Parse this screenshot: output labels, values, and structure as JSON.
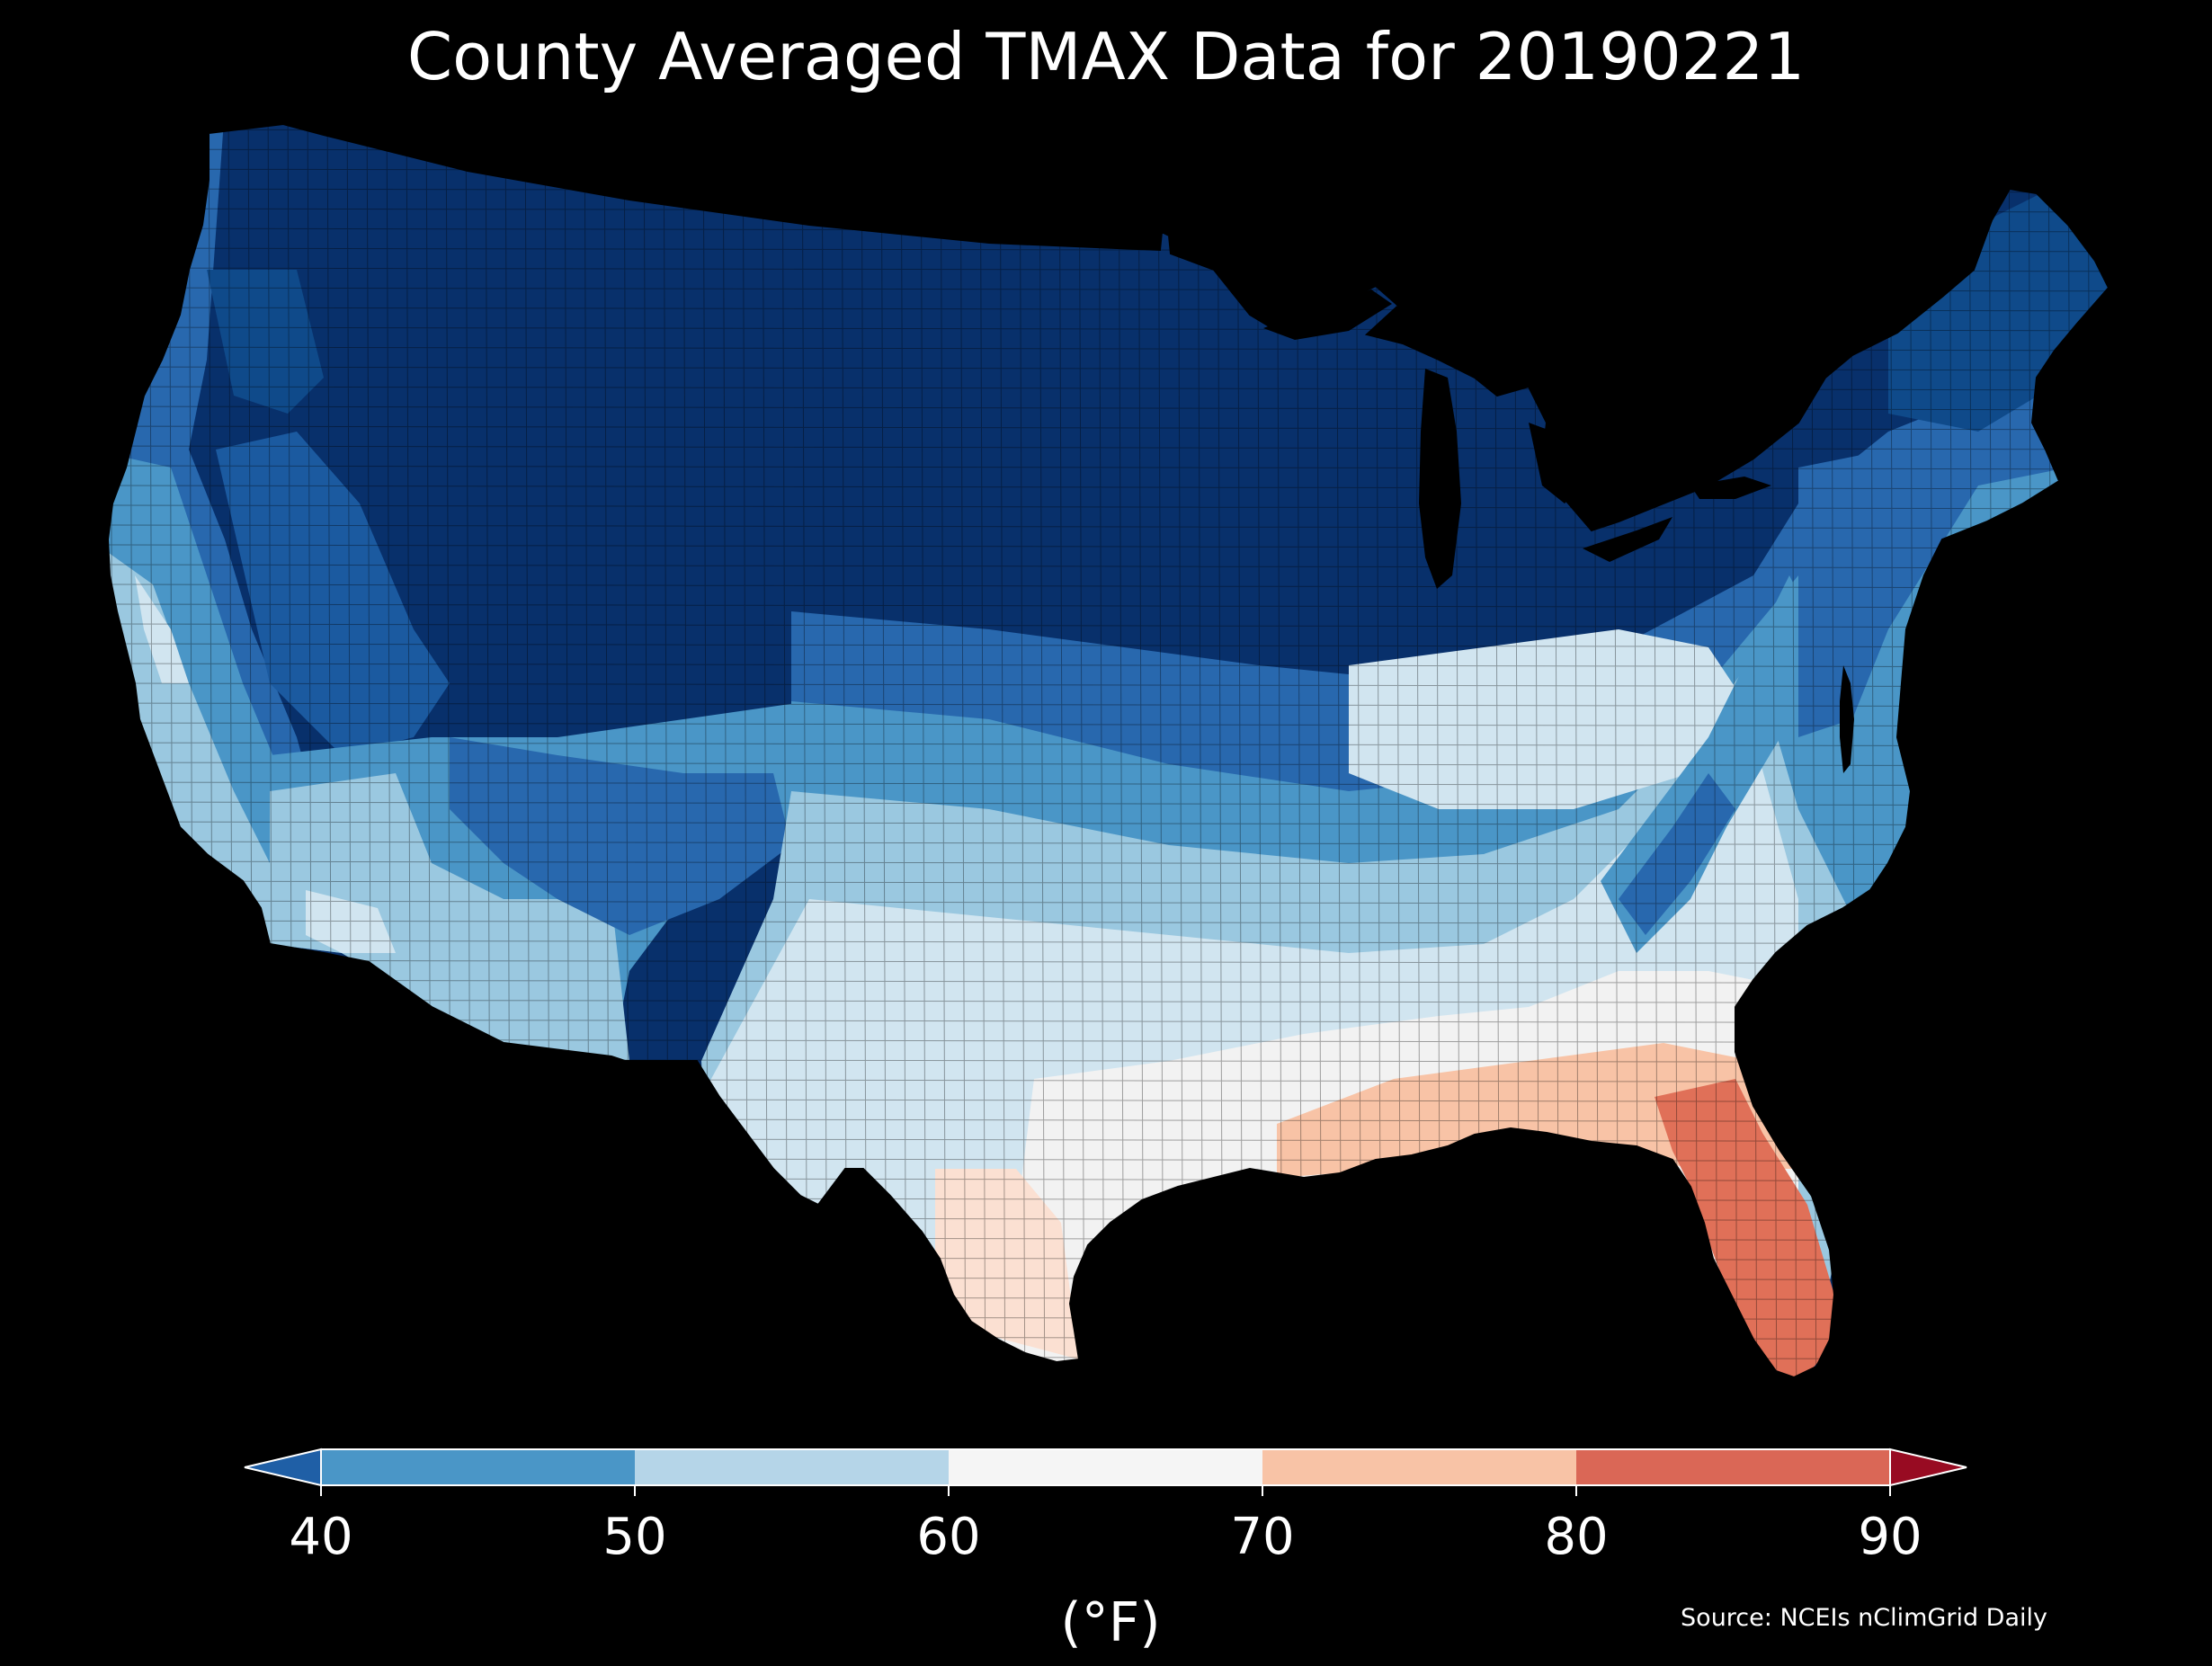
{
  "title": "County Averaged TMAX Data for 20190221",
  "colorbar": {
    "unit_label": "(°F)",
    "ticks": [
      "40",
      "50",
      "60",
      "70",
      "80",
      "90"
    ],
    "bins": [
      {
        "range": [
          40,
          50
        ],
        "color": "#4a96c7"
      },
      {
        "range": [
          50,
          60
        ],
        "color": "#b5d5e8"
      },
      {
        "range": [
          60,
          70
        ],
        "color": "#f5f5f5"
      },
      {
        "range": [
          70,
          80
        ],
        "color": "#f8c3a6"
      },
      {
        "range": [
          80,
          90
        ],
        "color": "#da6756"
      }
    ],
    "under_color": "#1f5fa6",
    "over_color": "#980b22",
    "extend": "both"
  },
  "source": "Source: NCEIs nClimGrid Daily",
  "map": {
    "region": "Contiguous United States counties",
    "background": "#000000",
    "county_border_color": "#000000",
    "palette": {
      "very_cold": "#08306b",
      "cold": "#0f4a8a",
      "cool_mid": "#2868ae",
      "cool": "#4a96c7",
      "mild": "#9ac8e0",
      "light": "#d1e5f0",
      "neutral": "#f2f2f2",
      "warm": "#f8c3a6",
      "hot": "#e07058"
    }
  }
}
